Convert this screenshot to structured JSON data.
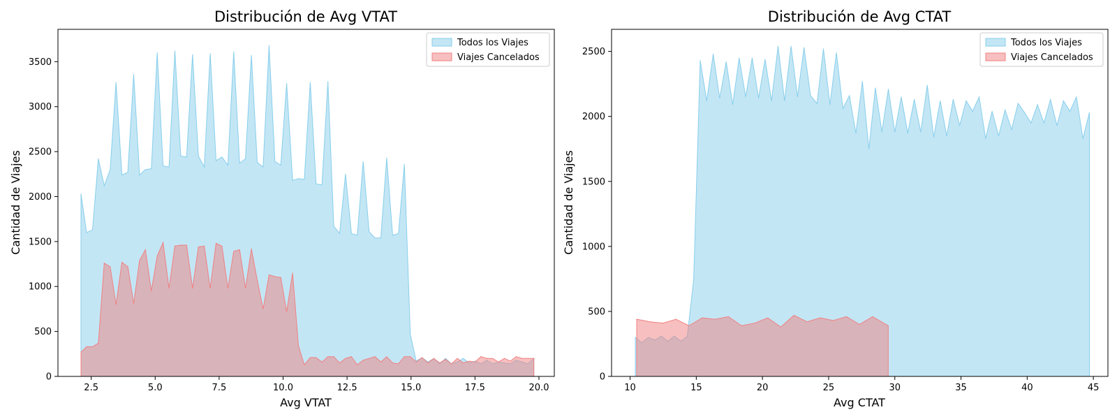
{
  "chart_data": [
    {
      "type": "area",
      "title": "Distribución de Avg VTAT",
      "xlabel": "Avg VTAT",
      "ylabel": "Cantidad de Viajes",
      "xlim": [
        1.2,
        20.6
      ],
      "ylim": [
        0,
        3860
      ],
      "xticks": [
        "2.5",
        "5.0",
        "7.5",
        "10.0",
        "12.5",
        "15.0",
        "17.5",
        "20.0"
      ],
      "yticks": [
        "0",
        "500",
        "1000",
        "1500",
        "2000",
        "2500",
        "3000",
        "3500"
      ],
      "grid": false,
      "legend_position": "top-right",
      "series": [
        {
          "name": "Todos los Viajes",
          "color": "#87ceeb",
          "points": [
            [
              2.1,
              2030
            ],
            [
              2.32,
              1600
            ],
            [
              2.55,
              1630
            ],
            [
              2.78,
              2420
            ],
            [
              3.01,
              2120
            ],
            [
              3.24,
              2300
            ],
            [
              3.47,
              3270
            ],
            [
              3.7,
              2240
            ],
            [
              3.93,
              2270
            ],
            [
              4.16,
              3360
            ],
            [
              4.39,
              2240
            ],
            [
              4.62,
              2300
            ],
            [
              4.85,
              2310
            ],
            [
              5.08,
              3600
            ],
            [
              5.31,
              2340
            ],
            [
              5.54,
              2330
            ],
            [
              5.77,
              3620
            ],
            [
              6.0,
              2450
            ],
            [
              6.23,
              2440
            ],
            [
              6.46,
              3580
            ],
            [
              6.69,
              2450
            ],
            [
              6.92,
              2330
            ],
            [
              7.15,
              3590
            ],
            [
              7.38,
              2400
            ],
            [
              7.61,
              2440
            ],
            [
              7.84,
              2350
            ],
            [
              8.07,
              3610
            ],
            [
              8.3,
              2370
            ],
            [
              8.53,
              2420
            ],
            [
              8.76,
              3570
            ],
            [
              8.99,
              2380
            ],
            [
              9.22,
              2330
            ],
            [
              9.45,
              3680
            ],
            [
              9.68,
              2390
            ],
            [
              9.91,
              2350
            ],
            [
              10.14,
              3260
            ],
            [
              10.37,
              2180
            ],
            [
              10.6,
              2200
            ],
            [
              10.83,
              2190
            ],
            [
              11.06,
              3270
            ],
            [
              11.29,
              2140
            ],
            [
              11.52,
              2130
            ],
            [
              11.75,
              3280
            ],
            [
              11.98,
              1670
            ],
            [
              12.21,
              1590
            ],
            [
              12.44,
              2250
            ],
            [
              12.67,
              1590
            ],
            [
              12.9,
              1570
            ],
            [
              13.13,
              2390
            ],
            [
              13.36,
              1610
            ],
            [
              13.59,
              1540
            ],
            [
              13.82,
              1540
            ],
            [
              14.05,
              2430
            ],
            [
              14.28,
              1570
            ],
            [
              14.51,
              1590
            ],
            [
              14.74,
              2360
            ],
            [
              14.97,
              470
            ],
            [
              15.2,
              170
            ],
            [
              15.43,
              210
            ],
            [
              15.66,
              160
            ],
            [
              15.89,
              200
            ],
            [
              16.12,
              140
            ],
            [
              16.35,
              200
            ],
            [
              16.58,
              140
            ],
            [
              16.81,
              160
            ],
            [
              17.04,
              200
            ],
            [
              17.27,
              150
            ],
            [
              17.5,
              170
            ],
            [
              17.73,
              140
            ],
            [
              17.96,
              180
            ],
            [
              18.19,
              140
            ],
            [
              18.42,
              160
            ],
            [
              18.65,
              150
            ],
            [
              18.88,
              140
            ],
            [
              19.11,
              180
            ],
            [
              19.34,
              160
            ],
            [
              19.57,
              140
            ],
            [
              19.8,
              200
            ]
          ]
        },
        {
          "name": "Viajes Cancelados",
          "color": "#f08080",
          "points": [
            [
              2.1,
              270
            ],
            [
              2.32,
              330
            ],
            [
              2.55,
              330
            ],
            [
              2.78,
              370
            ],
            [
              3.01,
              1260
            ],
            [
              3.24,
              1220
            ],
            [
              3.47,
              800
            ],
            [
              3.7,
              1270
            ],
            [
              3.93,
              1220
            ],
            [
              4.16,
              810
            ],
            [
              4.39,
              1290
            ],
            [
              4.62,
              1410
            ],
            [
              4.85,
              950
            ],
            [
              5.08,
              1340
            ],
            [
              5.31,
              1490
            ],
            [
              5.54,
              980
            ],
            [
              5.77,
              1450
            ],
            [
              6.0,
              1460
            ],
            [
              6.23,
              1460
            ],
            [
              6.46,
              980
            ],
            [
              6.69,
              1440
            ],
            [
              6.92,
              1450
            ],
            [
              7.15,
              980
            ],
            [
              7.38,
              1480
            ],
            [
              7.61,
              1450
            ],
            [
              7.84,
              980
            ],
            [
              8.07,
              1390
            ],
            [
              8.3,
              1410
            ],
            [
              8.53,
              980
            ],
            [
              8.76,
              1420
            ],
            [
              8.99,
              1070
            ],
            [
              9.22,
              750
            ],
            [
              9.45,
              1130
            ],
            [
              9.68,
              1110
            ],
            [
              9.91,
              1100
            ],
            [
              10.14,
              720
            ],
            [
              10.37,
              1150
            ],
            [
              10.6,
              340
            ],
            [
              10.83,
              130
            ],
            [
              11.06,
              210
            ],
            [
              11.29,
              210
            ],
            [
              11.52,
              160
            ],
            [
              11.75,
              220
            ],
            [
              11.98,
              220
            ],
            [
              12.21,
              150
            ],
            [
              12.44,
              200
            ],
            [
              12.67,
              220
            ],
            [
              12.9,
              130
            ],
            [
              13.13,
              180
            ],
            [
              13.36,
              200
            ],
            [
              13.59,
              220
            ],
            [
              13.82,
              160
            ],
            [
              14.05,
              220
            ],
            [
              14.28,
              150
            ],
            [
              14.51,
              140
            ],
            [
              14.74,
              220
            ],
            [
              14.97,
              220
            ],
            [
              15.2,
              160
            ],
            [
              15.43,
              210
            ],
            [
              15.66,
              150
            ],
            [
              15.89,
              200
            ],
            [
              16.12,
              150
            ],
            [
              16.35,
              190
            ],
            [
              16.58,
              140
            ],
            [
              16.81,
              200
            ],
            [
              17.04,
              150
            ],
            [
              17.27,
              170
            ],
            [
              17.5,
              160
            ],
            [
              17.73,
              220
            ],
            [
              17.96,
              200
            ],
            [
              18.19,
              200
            ],
            [
              18.42,
              160
            ],
            [
              18.65,
              200
            ],
            [
              18.88,
              170
            ],
            [
              19.11,
              220
            ],
            [
              19.34,
              200
            ],
            [
              19.57,
              200
            ],
            [
              19.8,
              200
            ]
          ]
        }
      ]
    },
    {
      "type": "area",
      "title": "Distribución de Avg CTAT",
      "xlabel": "Avg CTAT",
      "ylabel": "Cantidad de Viajes",
      "xlim": [
        8.6,
        46.1
      ],
      "ylim": [
        0,
        2670
      ],
      "xticks": [
        "10",
        "15",
        "20",
        "25",
        "30",
        "35",
        "40",
        "45"
      ],
      "yticks": [
        "0",
        "500",
        "1000",
        "1500",
        "2000",
        "2500"
      ],
      "grid": false,
      "legend_position": "top-right",
      "series": [
        {
          "name": "Todos los Viajes",
          "color": "#87ceeb",
          "points": [
            [
              10.4,
              300
            ],
            [
              10.89,
              260
            ],
            [
              11.38,
              300
            ],
            [
              11.87,
              280
            ],
            [
              12.36,
              310
            ],
            [
              12.85,
              270
            ],
            [
              13.34,
              310
            ],
            [
              13.83,
              270
            ],
            [
              14.32,
              310
            ],
            [
              14.81,
              750
            ],
            [
              15.3,
              2430
            ],
            [
              15.79,
              2120
            ],
            [
              16.28,
              2480
            ],
            [
              16.77,
              2140
            ],
            [
              17.26,
              2420
            ],
            [
              17.75,
              2090
            ],
            [
              18.24,
              2450
            ],
            [
              18.73,
              2150
            ],
            [
              19.22,
              2450
            ],
            [
              19.71,
              2140
            ],
            [
              20.2,
              2440
            ],
            [
              20.69,
              2120
            ],
            [
              21.18,
              2540
            ],
            [
              21.67,
              2120
            ],
            [
              22.16,
              2540
            ],
            [
              22.65,
              2150
            ],
            [
              23.14,
              2530
            ],
            [
              23.63,
              2160
            ],
            [
              24.12,
              2100
            ],
            [
              24.61,
              2520
            ],
            [
              25.1,
              2090
            ],
            [
              25.59,
              2490
            ],
            [
              26.08,
              2060
            ],
            [
              26.57,
              2160
            ],
            [
              27.06,
              1870
            ],
            [
              27.55,
              2270
            ],
            [
              28.04,
              1750
            ],
            [
              28.53,
              2220
            ],
            [
              29.02,
              1880
            ],
            [
              29.51,
              2210
            ],
            [
              30.0,
              1880
            ],
            [
              30.49,
              2150
            ],
            [
              30.98,
              1870
            ],
            [
              31.47,
              2130
            ],
            [
              31.96,
              1880
            ],
            [
              32.45,
              2240
            ],
            [
              32.94,
              1840
            ],
            [
              33.43,
              2120
            ],
            [
              33.92,
              1850
            ],
            [
              34.41,
              2130
            ],
            [
              34.9,
              1930
            ],
            [
              35.39,
              2120
            ],
            [
              35.88,
              2040
            ],
            [
              36.37,
              2150
            ],
            [
              36.86,
              1830
            ],
            [
              37.35,
              2040
            ],
            [
              37.84,
              1850
            ],
            [
              38.33,
              2050
            ],
            [
              38.82,
              1900
            ],
            [
              39.31,
              2100
            ],
            [
              39.8,
              2030
            ],
            [
              40.29,
              1950
            ],
            [
              40.78,
              2090
            ],
            [
              41.27,
              1950
            ],
            [
              41.76,
              2130
            ],
            [
              42.25,
              1930
            ],
            [
              42.74,
              2120
            ],
            [
              43.23,
              2040
            ],
            [
              43.72,
              2150
            ],
            [
              44.21,
              1830
            ],
            [
              44.7,
              2030
            ]
          ]
        },
        {
          "name": "Viajes Cancelados",
          "color": "#f08080",
          "points": [
            [
              10.5,
              440
            ],
            [
              11.49,
              420
            ],
            [
              12.48,
              410
            ],
            [
              13.47,
              440
            ],
            [
              14.46,
              390
            ],
            [
              15.45,
              450
            ],
            [
              16.44,
              440
            ],
            [
              17.43,
              460
            ],
            [
              18.42,
              390
            ],
            [
              19.41,
              410
            ],
            [
              20.4,
              450
            ],
            [
              21.39,
              380
            ],
            [
              22.38,
              470
            ],
            [
              23.37,
              420
            ],
            [
              24.36,
              450
            ],
            [
              25.35,
              430
            ],
            [
              26.34,
              460
            ],
            [
              27.33,
              400
            ],
            [
              28.32,
              460
            ],
            [
              29.5,
              390
            ]
          ]
        }
      ]
    }
  ]
}
